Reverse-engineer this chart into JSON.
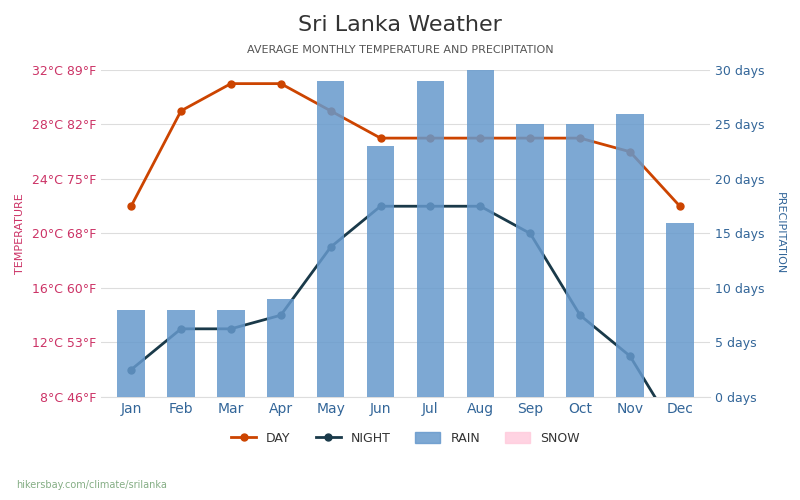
{
  "title": "Sri Lanka Weather",
  "subtitle": "AVERAGE MONTHLY TEMPERATURE AND PRECIPITATION",
  "months": [
    "Jan",
    "Feb",
    "Mar",
    "Apr",
    "May",
    "Jun",
    "Jul",
    "Aug",
    "Sep",
    "Oct",
    "Nov",
    "Dec"
  ],
  "day_temp": [
    22,
    29,
    31,
    31,
    29,
    27,
    27,
    27,
    27,
    27,
    26,
    22
  ],
  "night_temp": [
    10,
    13,
    13,
    14,
    19,
    22,
    22,
    22,
    20,
    14,
    11,
    5
  ],
  "rain_days": [
    8,
    8,
    8,
    9,
    29,
    23,
    29,
    30,
    25,
    25,
    26,
    16
  ],
  "bar_color": "#6699cc",
  "day_color": "#cc4400",
  "night_color": "#1a3a4a",
  "grid_color": "#dddddd",
  "background_color": "#ffffff",
  "left_yticks_c": [
    8,
    12,
    16,
    20,
    24,
    28,
    32
  ],
  "left_yticks_f": [
    46,
    53,
    60,
    68,
    75,
    82,
    89
  ],
  "right_yticks_days": [
    0,
    5,
    10,
    15,
    20,
    25,
    30
  ],
  "temp_min": 8,
  "temp_max": 32,
  "rain_max": 30,
  "watermark": "hikersbay.com/climate/srilanka",
  "title_color": "#333333",
  "subtitle_color": "#555555",
  "left_tick_color_c": "#cc3366",
  "left_tick_color_f": "#cc3366",
  "right_tick_color": "#336699",
  "xlabel_color": "#336699",
  "temp_label_color": "#cc3366",
  "precip_label_color": "#336699"
}
